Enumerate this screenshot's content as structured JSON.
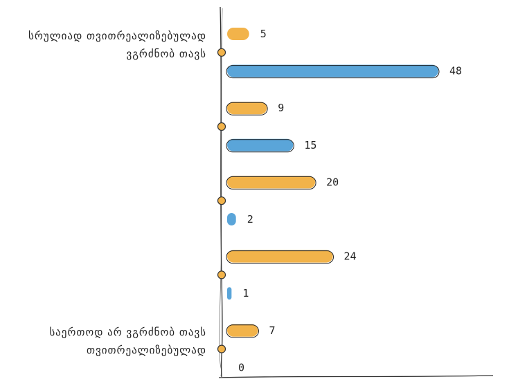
{
  "chart_data": {
    "type": "bar",
    "orientation": "horizontal",
    "style": "hand-drawn",
    "categories": [
      "სრულიად თვითრეალიზებულად ვგრძნობ თავს",
      "",
      "",
      "",
      "საერთოდ არ ვგრძნობ თავს თვითრეალიზებულად"
    ],
    "bars": [
      {
        "category_index": 0,
        "value": 5,
        "color": "#f2b34a"
      },
      {
        "category_index": 0,
        "value": 48,
        "color": "#5aa5d9"
      },
      {
        "category_index": 1,
        "value": 9,
        "color": "#f2b34a"
      },
      {
        "category_index": 1,
        "value": 15,
        "color": "#5aa5d9"
      },
      {
        "category_index": 2,
        "value": 20,
        "color": "#f2b34a"
      },
      {
        "category_index": 2,
        "value": 2,
        "color": "#5aa5d9"
      },
      {
        "category_index": 3,
        "value": 24,
        "color": "#f2b34a"
      },
      {
        "category_index": 3,
        "value": 1,
        "color": "#5aa5d9"
      },
      {
        "category_index": 4,
        "value": 7,
        "color": "#f2b34a"
      },
      {
        "category_index": 4,
        "value": 0,
        "color": "#5aa5d9"
      }
    ],
    "value_labels": [
      "5",
      "48",
      "9",
      "15",
      "20",
      "2",
      "24",
      "1",
      "7",
      "0"
    ],
    "xlim": [
      0,
      50
    ],
    "grid": false,
    "legend": "none",
    "colors": {
      "orange": "#f2b34a",
      "blue": "#5aa5d9",
      "axis": "#333333",
      "marker": "#f2b34a"
    }
  }
}
